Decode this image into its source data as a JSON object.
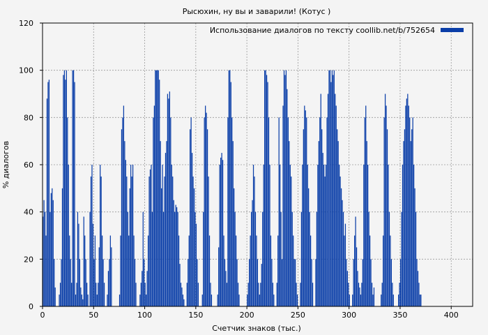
{
  "chart_data": {
    "type": "bar",
    "title": "Рысюхин, ну вы и заварили! (Котус )",
    "xlabel": "Счетчик знаков (тыс.)",
    "ylabel": "% диалогов",
    "xlim": [
      0,
      421
    ],
    "ylim": [
      0,
      120
    ],
    "xticks": [
      0,
      50,
      100,
      150,
      200,
      250,
      300,
      350,
      400
    ],
    "yticks": [
      0,
      20,
      40,
      60,
      80,
      100,
      120
    ],
    "grid": true,
    "legend_position": "top-right",
    "bar_color": "#0a3ea8",
    "series": [
      {
        "name": "Использование диалогов по тексту coollib.net/b/752654",
        "x_step": 1,
        "values": [
          38,
          45,
          40,
          30,
          88,
          95,
          96,
          40,
          48,
          50,
          45,
          20,
          8,
          0,
          0,
          0,
          5,
          10,
          20,
          50,
          98,
          100,
          96,
          100,
          80,
          60,
          30,
          20,
          10,
          100,
          100,
          95,
          5,
          10,
          40,
          35,
          20,
          8,
          5,
          3,
          38,
          30,
          20,
          10,
          5,
          0,
          40,
          55,
          60,
          35,
          20,
          30,
          10,
          5,
          10,
          25,
          60,
          55,
          30,
          20,
          10,
          0,
          0,
          5,
          15,
          20,
          30,
          25,
          0,
          0,
          0,
          0,
          0,
          0,
          0,
          5,
          30,
          75,
          80,
          85,
          70,
          62,
          55,
          40,
          30,
          50,
          60,
          55,
          60,
          30,
          20,
          10,
          0,
          0,
          0,
          5,
          10,
          15,
          40,
          20,
          10,
          5,
          15,
          30,
          55,
          58,
          60,
          40,
          80,
          85,
          100,
          100,
          100,
          100,
          96,
          70,
          50,
          60,
          40,
          55,
          65,
          70,
          90,
          88,
          91,
          80,
          60,
          55,
          45,
          40,
          43,
          42,
          40,
          30,
          18,
          10,
          8,
          5,
          3,
          0,
          0,
          10,
          20,
          30,
          75,
          80,
          65,
          55,
          50,
          40,
          35,
          20,
          10,
          0,
          0,
          0,
          5,
          40,
          80,
          85,
          82,
          75,
          55,
          30,
          10,
          5,
          0,
          0,
          0,
          0,
          0,
          5,
          25,
          60,
          63,
          65,
          62,
          30,
          20,
          15,
          10,
          80,
          100,
          100,
          95,
          80,
          70,
          50,
          40,
          30,
          20,
          10,
          5,
          0,
          0,
          0,
          0,
          0,
          0,
          0,
          5,
          10,
          20,
          30,
          40,
          45,
          60,
          55,
          40,
          30,
          20,
          10,
          5,
          10,
          18,
          40,
          60,
          100,
          100,
          98,
          95,
          80,
          60,
          30,
          20,
          10,
          5,
          0,
          0,
          10,
          30,
          80,
          60,
          40,
          20,
          85,
          100,
          98,
          100,
          92,
          80,
          70,
          60,
          55,
          40,
          30,
          20,
          20,
          10,
          5,
          0,
          0,
          10,
          40,
          60,
          75,
          85,
          83,
          80,
          60,
          50,
          40,
          30,
          20,
          10,
          0,
          0,
          20,
          40,
          60,
          70,
          80,
          90,
          75,
          65,
          60,
          55,
          60,
          80,
          90,
          100,
          100,
          95,
          100,
          98,
          100,
          90,
          85,
          75,
          70,
          60,
          55,
          50,
          45,
          40,
          30,
          35,
          20,
          15,
          10,
          5,
          0,
          0,
          5,
          20,
          30,
          38,
          25,
          15,
          10,
          8,
          5,
          10,
          20,
          60,
          80,
          85,
          70,
          60,
          40,
          30,
          20,
          10,
          5,
          8,
          0,
          0,
          0,
          0,
          0,
          0,
          5,
          10,
          30,
          80,
          90,
          85,
          75,
          60,
          40,
          30,
          20,
          10,
          5,
          0,
          0,
          0,
          0,
          5,
          10,
          20,
          40,
          60,
          70,
          75,
          85,
          88,
          90,
          85,
          80,
          70,
          75,
          80,
          60,
          50,
          40,
          20,
          15,
          10,
          5,
          5
        ]
      }
    ]
  }
}
